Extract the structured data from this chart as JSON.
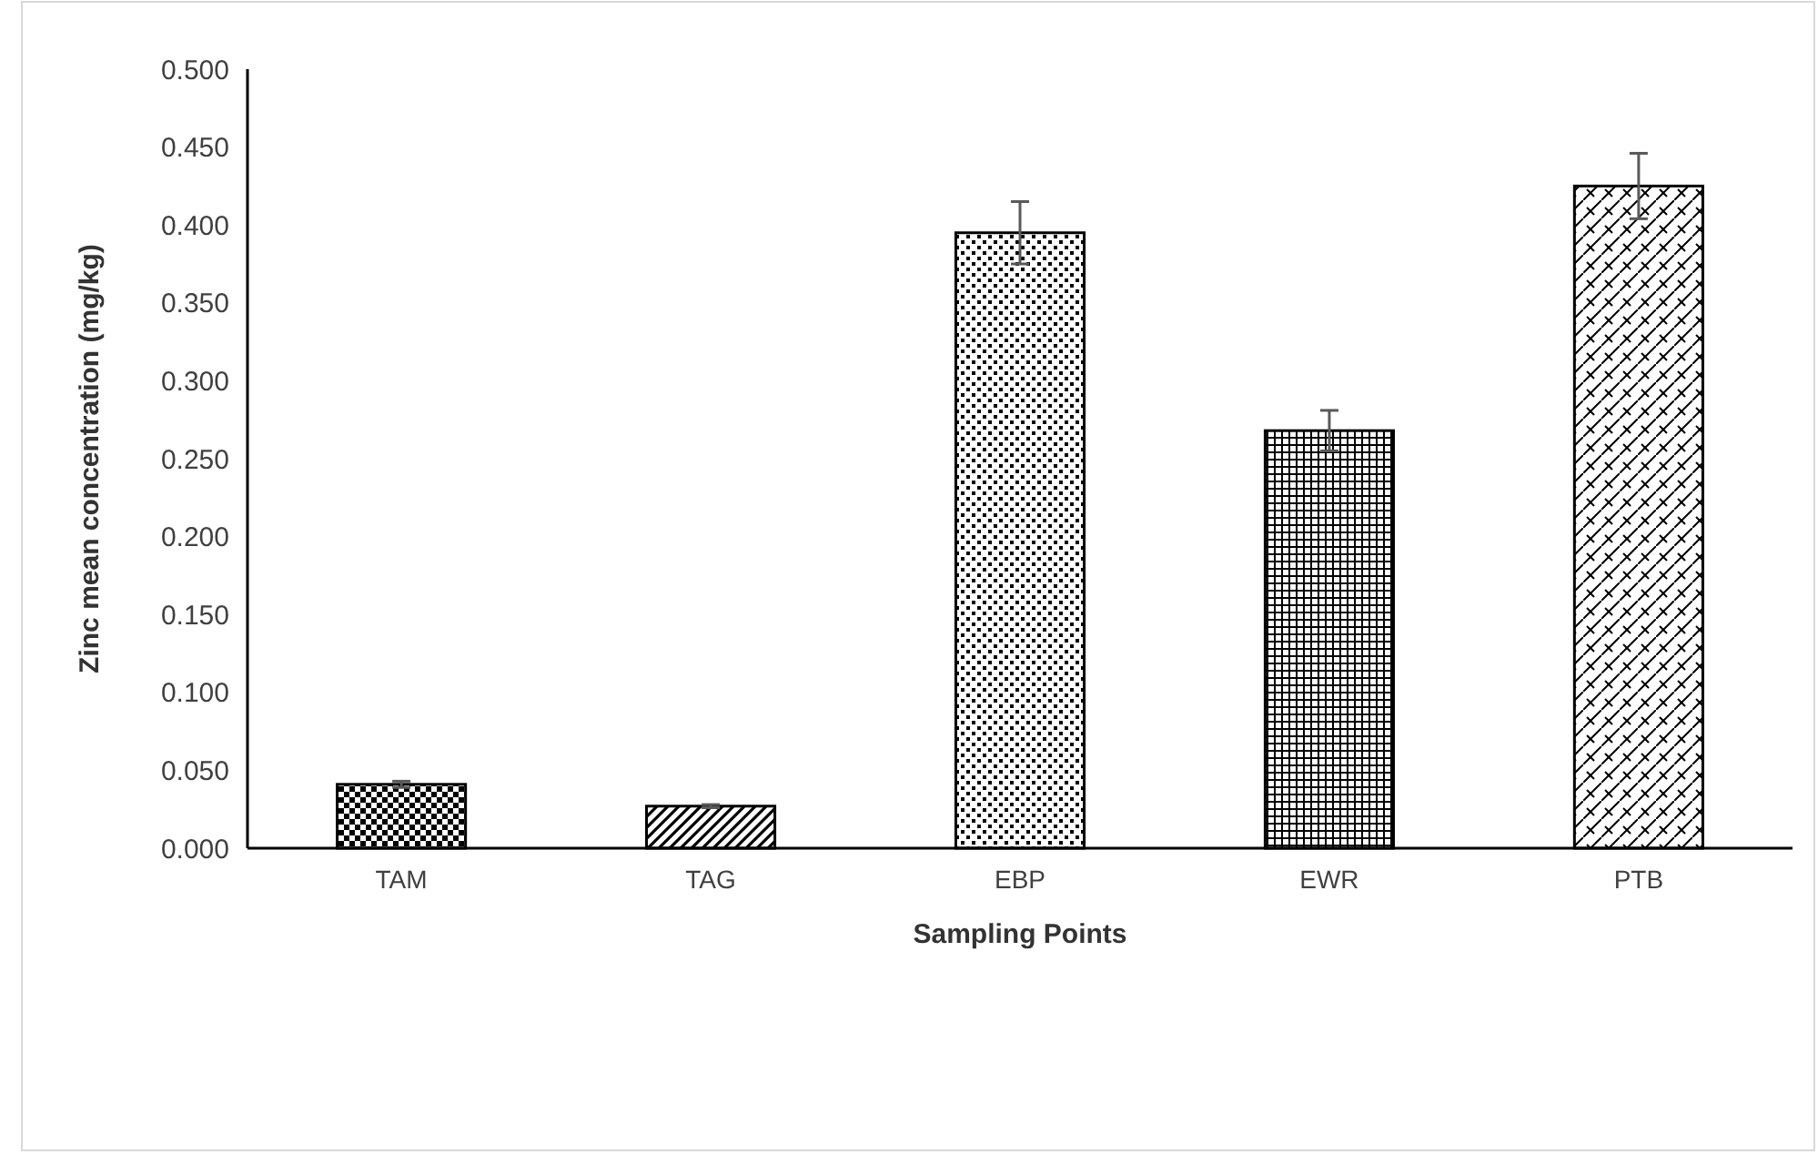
{
  "chart_data": {
    "type": "bar",
    "xlabel": "Sampling Points",
    "ylabel": "Zinc mean concentration (mg/kg)",
    "categories": [
      "TAM",
      "TAG",
      "EBP",
      "EWR",
      "PTB"
    ],
    "values": [
      0.041,
      0.027,
      0.395,
      0.268,
      0.425
    ],
    "errors": [
      0.002,
      0.001,
      0.02,
      0.013,
      0.021
    ],
    "color": "#000000",
    "ylim": [
      0,
      0.5
    ],
    "yticks": [
      {
        "value": 0,
        "label": "0.000"
      },
      {
        "value": 0.05,
        "label": "0.050"
      },
      {
        "value": 0.1,
        "label": "0.100"
      },
      {
        "value": 0.15,
        "label": "0.150"
      },
      {
        "value": 0.2,
        "label": "0.200"
      },
      {
        "value": 0.25,
        "label": "0.250"
      },
      {
        "value": 0.3,
        "label": "0.300"
      },
      {
        "value": 0.35,
        "label": "0.350"
      },
      {
        "value": 0.4,
        "label": "0.400"
      },
      {
        "value": 0.45,
        "label": "0.450"
      },
      {
        "value": 0.5,
        "label": "0.500"
      }
    ],
    "grid": false
  }
}
